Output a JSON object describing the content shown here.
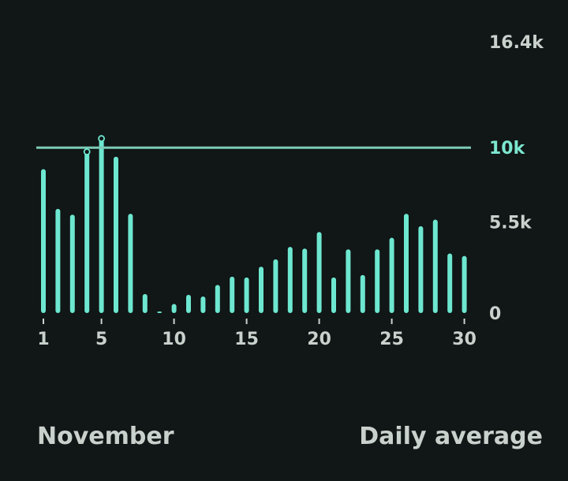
{
  "chart_data": {
    "type": "bar",
    "title": "",
    "xlabel": "",
    "ylabel": "",
    "ylim": [
      0,
      16400
    ],
    "x_days": [
      1,
      2,
      3,
      4,
      5,
      6,
      7,
      8,
      9,
      10,
      11,
      12,
      13,
      14,
      15,
      16,
      17,
      18,
      19,
      20,
      21,
      22,
      23,
      24,
      25,
      26,
      27,
      28,
      29,
      30
    ],
    "x_tick_labels": [
      "1",
      "5",
      "10",
      "15",
      "20",
      "25",
      "30"
    ],
    "x_tick_days": [
      1,
      5,
      10,
      15,
      20,
      25,
      30
    ],
    "y_tick_labels": [
      "16.4k",
      "10k",
      "5.5k",
      "0"
    ],
    "y_tick_values": [
      16400,
      10000,
      5500,
      0
    ],
    "series": [
      {
        "values": [
          8700,
          6300,
          5950,
          9750,
          10550,
          9450,
          6000,
          1150,
          0,
          550,
          1100,
          1000,
          1700,
          2200,
          2150,
          2800,
          3250,
          4000,
          3900,
          4900,
          2150,
          3850,
          2300,
          3850,
          4550,
          6000,
          5250,
          5650,
          3600,
          3450
        ]
      }
    ],
    "reference_line": {
      "value": 10000,
      "label": "10k"
    },
    "highlighted_days": [
      4,
      5
    ],
    "colors": {
      "background": "#111616",
      "bar": "#6de7d0",
      "reference_line": "#7ccbb6",
      "axis_text": "#c9d1cd",
      "reference_text": "#7ce6cf"
    }
  },
  "footer": {
    "month": "November",
    "summary": "Daily average"
  }
}
